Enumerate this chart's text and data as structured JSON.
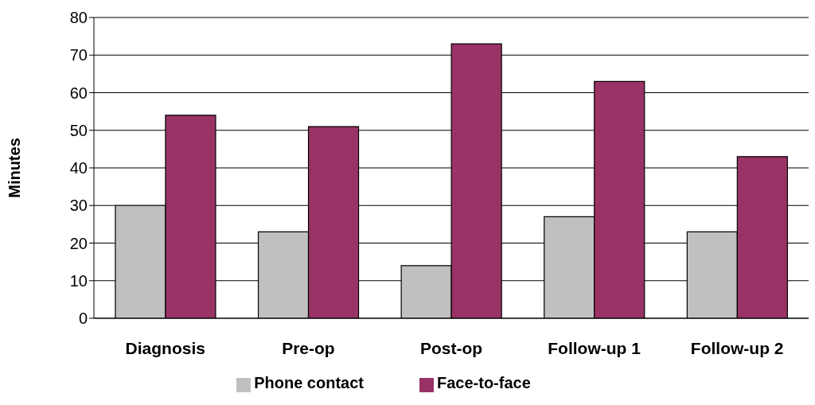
{
  "chart_data": {
    "type": "bar",
    "ylabel": "Minutes",
    "categories": [
      "Diagnosis",
      "Pre-op",
      "Post-op",
      "Follow-up 1",
      "Follow-up 2"
    ],
    "series": [
      {
        "name": "Phone contact",
        "color": "#c0c0c0",
        "values": [
          30,
          23,
          14,
          27,
          23
        ]
      },
      {
        "name": "Face-to-face",
        "color": "#993366",
        "values": [
          54,
          51,
          73,
          63,
          43
        ]
      }
    ],
    "ylim": [
      0,
      80
    ],
    "yticks": [
      0,
      10,
      20,
      30,
      40,
      50,
      60,
      70,
      80
    ],
    "grid": "y",
    "legend": "bottom"
  }
}
